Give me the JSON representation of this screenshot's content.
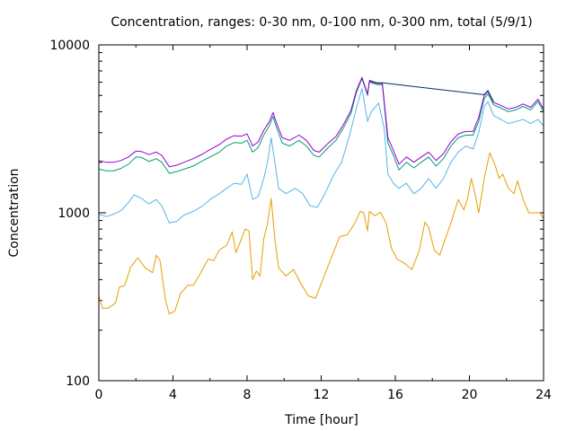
{
  "chart_data": {
    "type": "line",
    "title": "Concentration, ranges: 0-30 nm, 0-100 nm, 0-300 nm, total (5/9/1)",
    "xlabel": "Time [hour]",
    "ylabel": "Concentration",
    "xlim": [
      0,
      24
    ],
    "ylim": [
      100,
      10000
    ],
    "yscale": "log",
    "grid": false,
    "legend": "none",
    "x_ticks": [
      "0",
      "4",
      "8",
      "12",
      "16",
      "20",
      "24"
    ],
    "y_ticks": [
      "100",
      "1000",
      "10000"
    ],
    "series": [
      {
        "color": "#e69f00",
        "points": [
          [
            0,
            320
          ],
          [
            0.2,
            270
          ],
          [
            0.5,
            270
          ],
          [
            0.9,
            290
          ],
          [
            1.1,
            360
          ],
          [
            1.4,
            370
          ],
          [
            1.7,
            470
          ],
          [
            2.1,
            540
          ],
          [
            2.5,
            470
          ],
          [
            2.9,
            440
          ],
          [
            3.1,
            560
          ],
          [
            3.3,
            520
          ],
          [
            3.6,
            300
          ],
          [
            3.8,
            250
          ],
          [
            4.1,
            260
          ],
          [
            4.4,
            330
          ],
          [
            4.8,
            370
          ],
          [
            5.1,
            370
          ],
          [
            5.5,
            440
          ],
          [
            5.9,
            530
          ],
          [
            6.2,
            520
          ],
          [
            6.5,
            600
          ],
          [
            6.9,
            640
          ],
          [
            7.2,
            770
          ],
          [
            7.4,
            580
          ],
          [
            7.7,
            700
          ],
          [
            7.9,
            800
          ],
          [
            8.1,
            780
          ],
          [
            8.3,
            400
          ],
          [
            8.5,
            450
          ],
          [
            8.7,
            420
          ],
          [
            8.9,
            700
          ],
          [
            9.1,
            860
          ],
          [
            9.3,
            1220
          ],
          [
            9.5,
            700
          ],
          [
            9.7,
            470
          ],
          [
            10.1,
            420
          ],
          [
            10.5,
            460
          ],
          [
            10.9,
            380
          ],
          [
            11.3,
            320
          ],
          [
            11.7,
            310
          ],
          [
            12.2,
            430
          ],
          [
            12.6,
            560
          ],
          [
            13.0,
            720
          ],
          [
            13.4,
            740
          ],
          [
            13.8,
            860
          ],
          [
            14.1,
            1020
          ],
          [
            14.3,
            1000
          ],
          [
            14.5,
            780
          ],
          [
            14.6,
            1020
          ],
          [
            14.9,
            960
          ],
          [
            15.2,
            1010
          ],
          [
            15.5,
            870
          ],
          [
            15.8,
            610
          ],
          [
            16.1,
            530
          ],
          [
            16.5,
            500
          ],
          [
            16.9,
            460
          ],
          [
            17.3,
            600
          ],
          [
            17.6,
            880
          ],
          [
            17.8,
            820
          ],
          [
            18.1,
            600
          ],
          [
            18.4,
            560
          ],
          [
            18.7,
            700
          ],
          [
            19.0,
            870
          ],
          [
            19.4,
            1200
          ],
          [
            19.7,
            1040
          ],
          [
            19.9,
            1220
          ],
          [
            20.1,
            1600
          ],
          [
            20.3,
            1300
          ],
          [
            20.5,
            1000
          ],
          [
            20.8,
            1600
          ],
          [
            21.1,
            2280
          ],
          [
            21.4,
            1900
          ],
          [
            21.6,
            1600
          ],
          [
            21.8,
            1700
          ],
          [
            22.1,
            1400
          ],
          [
            22.4,
            1300
          ],
          [
            22.6,
            1550
          ],
          [
            22.9,
            1200
          ],
          [
            23.2,
            1000
          ],
          [
            23.5,
            1000
          ],
          [
            23.8,
            1000
          ],
          [
            24,
            920
          ]
        ]
      },
      {
        "color": "#56b4e9",
        "points": [
          [
            0,
            980
          ],
          [
            0.4,
            950
          ],
          [
            0.8,
            980
          ],
          [
            1.2,
            1030
          ],
          [
            1.6,
            1150
          ],
          [
            1.9,
            1280
          ],
          [
            2.3,
            1220
          ],
          [
            2.7,
            1130
          ],
          [
            3.1,
            1200
          ],
          [
            3.4,
            1100
          ],
          [
            3.8,
            870
          ],
          [
            4.2,
            890
          ],
          [
            4.6,
            970
          ],
          [
            5.1,
            1020
          ],
          [
            5.6,
            1100
          ],
          [
            6.0,
            1200
          ],
          [
            6.5,
            1300
          ],
          [
            6.9,
            1400
          ],
          [
            7.3,
            1500
          ],
          [
            7.7,
            1480
          ],
          [
            8.0,
            1700
          ],
          [
            8.3,
            1200
          ],
          [
            8.6,
            1250
          ],
          [
            8.9,
            1600
          ],
          [
            9.1,
            2000
          ],
          [
            9.3,
            2800
          ],
          [
            9.5,
            2000
          ],
          [
            9.7,
            1400
          ],
          [
            10.1,
            1300
          ],
          [
            10.6,
            1400
          ],
          [
            11.0,
            1300
          ],
          [
            11.4,
            1100
          ],
          [
            11.8,
            1080
          ],
          [
            12.2,
            1300
          ],
          [
            12.7,
            1700
          ],
          [
            13.1,
            2000
          ],
          [
            13.5,
            2800
          ],
          [
            13.9,
            4200
          ],
          [
            14.2,
            5500
          ],
          [
            14.5,
            3500
          ],
          [
            14.7,
            4000
          ],
          [
            15.1,
            4500
          ],
          [
            15.4,
            3200
          ],
          [
            15.6,
            1700
          ],
          [
            15.9,
            1500
          ],
          [
            16.2,
            1400
          ],
          [
            16.6,
            1500
          ],
          [
            17.0,
            1300
          ],
          [
            17.4,
            1400
          ],
          [
            17.8,
            1600
          ],
          [
            18.2,
            1400
          ],
          [
            18.6,
            1600
          ],
          [
            19.0,
            2000
          ],
          [
            19.4,
            2300
          ],
          [
            19.8,
            2500
          ],
          [
            20.2,
            2400
          ],
          [
            20.5,
            3000
          ],
          [
            20.8,
            4300
          ],
          [
            21.0,
            4600
          ],
          [
            21.3,
            3800
          ],
          [
            21.7,
            3600
          ],
          [
            22.1,
            3400
          ],
          [
            22.5,
            3500
          ],
          [
            22.9,
            3600
          ],
          [
            23.3,
            3400
          ],
          [
            23.7,
            3600
          ],
          [
            24,
            3300
          ]
        ]
      },
      {
        "color": "#009e73",
        "points": [
          [
            0,
            1820
          ],
          [
            0.4,
            1780
          ],
          [
            0.8,
            1780
          ],
          [
            1.2,
            1840
          ],
          [
            1.6,
            1950
          ],
          [
            2.0,
            2150
          ],
          [
            2.3,
            2140
          ],
          [
            2.7,
            2020
          ],
          [
            3.1,
            2100
          ],
          [
            3.4,
            2000
          ],
          [
            3.8,
            1720
          ],
          [
            4.2,
            1760
          ],
          [
            4.6,
            1820
          ],
          [
            5.1,
            1900
          ],
          [
            5.6,
            2040
          ],
          [
            6.0,
            2150
          ],
          [
            6.5,
            2300
          ],
          [
            6.9,
            2500
          ],
          [
            7.3,
            2620
          ],
          [
            7.7,
            2600
          ],
          [
            8.0,
            2700
          ],
          [
            8.3,
            2300
          ],
          [
            8.6,
            2450
          ],
          [
            8.9,
            2900
          ],
          [
            9.2,
            3300
          ],
          [
            9.4,
            3750
          ],
          [
            9.6,
            3200
          ],
          [
            9.9,
            2600
          ],
          [
            10.3,
            2500
          ],
          [
            10.8,
            2700
          ],
          [
            11.2,
            2500
          ],
          [
            11.6,
            2200
          ],
          [
            11.9,
            2150
          ],
          [
            12.3,
            2400
          ],
          [
            12.8,
            2700
          ],
          [
            13.2,
            3200
          ],
          [
            13.6,
            3900
          ],
          [
            13.9,
            5200
          ],
          [
            14.2,
            6300
          ],
          [
            14.5,
            5000
          ],
          [
            14.6,
            6000
          ],
          [
            15.0,
            5800
          ],
          [
            15.3,
            5800
          ],
          [
            15.6,
            2600
          ],
          [
            15.9,
            2200
          ],
          [
            16.2,
            1800
          ],
          [
            16.6,
            2000
          ],
          [
            17.0,
            1850
          ],
          [
            17.4,
            2000
          ],
          [
            17.8,
            2150
          ],
          [
            18.2,
            1900
          ],
          [
            18.6,
            2100
          ],
          [
            19.0,
            2500
          ],
          [
            19.4,
            2800
          ],
          [
            19.8,
            2900
          ],
          [
            20.2,
            2900
          ],
          [
            20.5,
            3500
          ],
          [
            20.8,
            4800
          ],
          [
            21.0,
            5100
          ],
          [
            21.3,
            4400
          ],
          [
            21.7,
            4200
          ],
          [
            22.1,
            4000
          ],
          [
            22.5,
            4100
          ],
          [
            22.9,
            4300
          ],
          [
            23.3,
            4100
          ],
          [
            23.7,
            4600
          ],
          [
            24,
            4000
          ]
        ]
      },
      {
        "color": "#9400d3",
        "points": [
          [
            0,
            2050
          ],
          [
            0.4,
            2000
          ],
          [
            0.8,
            2000
          ],
          [
            1.2,
            2050
          ],
          [
            1.6,
            2150
          ],
          [
            2.0,
            2330
          ],
          [
            2.3,
            2320
          ],
          [
            2.7,
            2220
          ],
          [
            3.1,
            2300
          ],
          [
            3.4,
            2200
          ],
          [
            3.8,
            1880
          ],
          [
            4.2,
            1920
          ],
          [
            4.6,
            2000
          ],
          [
            5.1,
            2100
          ],
          [
            5.6,
            2240
          ],
          [
            6.0,
            2380
          ],
          [
            6.5,
            2550
          ],
          [
            6.9,
            2750
          ],
          [
            7.3,
            2880
          ],
          [
            7.7,
            2860
          ],
          [
            8.0,
            2950
          ],
          [
            8.3,
            2500
          ],
          [
            8.6,
            2650
          ],
          [
            8.9,
            3100
          ],
          [
            9.2,
            3500
          ],
          [
            9.4,
            3950
          ],
          [
            9.6,
            3400
          ],
          [
            9.9,
            2800
          ],
          [
            10.3,
            2700
          ],
          [
            10.8,
            2900
          ],
          [
            11.2,
            2700
          ],
          [
            11.6,
            2350
          ],
          [
            11.9,
            2300
          ],
          [
            12.3,
            2550
          ],
          [
            12.8,
            2850
          ],
          [
            13.2,
            3350
          ],
          [
            13.6,
            4050
          ],
          [
            13.9,
            5350
          ],
          [
            14.2,
            6400
          ],
          [
            14.5,
            5100
          ],
          [
            14.6,
            6100
          ],
          [
            15.0,
            5900
          ],
          [
            15.3,
            5900
          ],
          [
            15.6,
            2800
          ],
          [
            15.9,
            2350
          ],
          [
            16.2,
            1950
          ],
          [
            16.6,
            2150
          ],
          [
            17.0,
            2000
          ],
          [
            17.4,
            2150
          ],
          [
            17.8,
            2300
          ],
          [
            18.2,
            2050
          ],
          [
            18.6,
            2250
          ],
          [
            19.0,
            2650
          ],
          [
            19.4,
            2950
          ],
          [
            19.8,
            3050
          ],
          [
            20.2,
            3050
          ],
          [
            20.5,
            3700
          ],
          [
            20.8,
            5000
          ],
          [
            21.0,
            5300
          ],
          [
            21.3,
            4550
          ],
          [
            21.7,
            4350
          ],
          [
            22.1,
            4150
          ],
          [
            22.5,
            4250
          ],
          [
            22.9,
            4450
          ],
          [
            23.3,
            4250
          ],
          [
            23.7,
            4750
          ],
          [
            24,
            4150
          ]
        ]
      },
      {
        "color": "#0a2a5e",
        "points": [
          [
            14.6,
            6150
          ],
          [
            15.0,
            5950
          ],
          [
            15.3,
            5950
          ],
          [
            20.8,
            5050
          ],
          [
            21.0,
            5350
          ],
          [
            21.3,
            4600
          ]
        ]
      }
    ]
  }
}
